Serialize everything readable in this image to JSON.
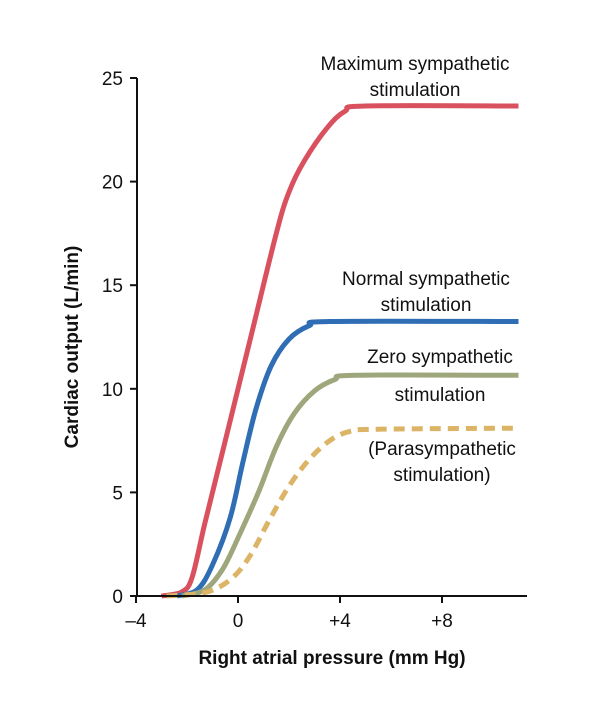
{
  "chart_data": {
    "type": "line",
    "title": "",
    "xlabel": "Right atrial pressure (mm Hg)",
    "ylabel": "Cardiac output (L/min)",
    "xlim": [
      -4,
      11
    ],
    "ylim": [
      0,
      25
    ],
    "x_ticks": [
      {
        "value": -4,
        "label": "–4"
      },
      {
        "value": 0,
        "label": "0"
      },
      {
        "value": 4,
        "label": "+4"
      },
      {
        "value": 8,
        "label": "+8"
      }
    ],
    "y_ticks": [
      {
        "value": 0,
        "label": "0"
      },
      {
        "value": 5,
        "label": "5"
      },
      {
        "value": 10,
        "label": "10"
      },
      {
        "value": 15,
        "label": "15"
      },
      {
        "value": 20,
        "label": "20"
      },
      {
        "value": 25,
        "label": "25"
      }
    ],
    "grid": false,
    "legend": "none",
    "series": [
      {
        "key": "maximum",
        "label_lines": [
          "Maximum sympathetic",
          "stimulation"
        ],
        "color": "#d9515f",
        "dashed": false,
        "points": [
          [
            -3.0,
            0
          ],
          [
            -2.2,
            0.2
          ],
          [
            -1.8,
            0.9
          ],
          [
            -1.3,
            3.5
          ],
          [
            -0.5,
            7.5
          ],
          [
            0.5,
            12.5
          ],
          [
            1.5,
            17.5
          ],
          [
            2.0,
            19.5
          ],
          [
            2.6,
            21.0
          ],
          [
            3.5,
            22.6
          ],
          [
            4.2,
            23.4
          ],
          [
            5.0,
            23.65
          ],
          [
            11,
            23.65
          ]
        ]
      },
      {
        "key": "normal",
        "label_lines": [
          "Normal sympathetic",
          "stimulation"
        ],
        "color": "#2f6db4",
        "dashed": false,
        "points": [
          [
            -2.4,
            0
          ],
          [
            -1.6,
            0.3
          ],
          [
            -1.0,
            1.5
          ],
          [
            -0.3,
            3.8
          ],
          [
            0.2,
            6.5
          ],
          [
            0.7,
            9.0
          ],
          [
            1.3,
            11.1
          ],
          [
            2.0,
            12.4
          ],
          [
            2.8,
            13.05
          ],
          [
            3.6,
            13.25
          ],
          [
            11,
            13.25
          ]
        ]
      },
      {
        "key": "zero",
        "label_lines": [
          "Zero sympathetic",
          "stimulation"
        ],
        "color": "#9ea77c",
        "dashed": false,
        "points": [
          [
            -2.2,
            0
          ],
          [
            -1.3,
            0.3
          ],
          [
            -0.6,
            1.3
          ],
          [
            0.0,
            2.8
          ],
          [
            0.8,
            5.0
          ],
          [
            1.5,
            7.2
          ],
          [
            2.2,
            8.8
          ],
          [
            3.0,
            9.9
          ],
          [
            3.8,
            10.45
          ],
          [
            4.6,
            10.65
          ],
          [
            11,
            10.65
          ]
        ]
      },
      {
        "key": "parasympathetic",
        "label_lines": [
          "(Parasympathetic",
          "stimulation)"
        ],
        "color": "#dcb466",
        "dashed": true,
        "points": [
          [
            -2.8,
            0
          ],
          [
            -1.2,
            0.2
          ],
          [
            -0.2,
            0.9
          ],
          [
            0.5,
            2.0
          ],
          [
            1.2,
            3.6
          ],
          [
            2.0,
            5.3
          ],
          [
            2.8,
            6.6
          ],
          [
            3.6,
            7.5
          ],
          [
            4.4,
            7.95
          ],
          [
            5.5,
            8.05
          ],
          [
            11,
            8.1
          ]
        ]
      }
    ]
  }
}
